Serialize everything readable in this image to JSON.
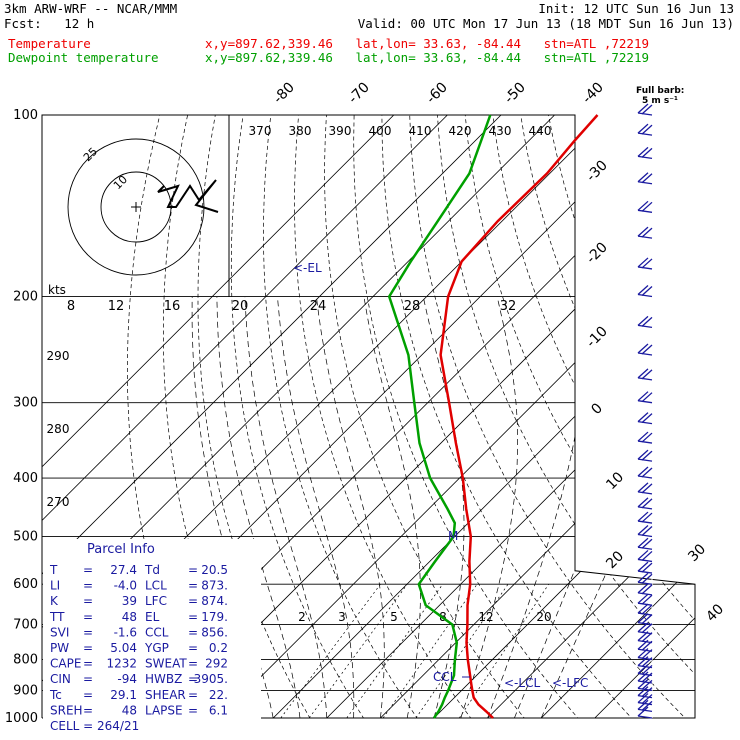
{
  "header": {
    "title": "3km ARW-WRF -- NCAR/MMM",
    "forecast": "Fcst:   12 h",
    "init": "Init: 12 UTC Sun 16 Jun 13",
    "valid": "Valid: 00 UTC Mon 17 Jun 13 (18 MDT Sun 16 Jun 13)"
  },
  "legend": {
    "temperature": {
      "name": "Temperature",
      "info": "x,y=897.62,339.46   lat,lon= 33.63, -84.44   stn=ATL ,72219",
      "color": "#e00000"
    },
    "dewpoint": {
      "name": "Dewpoint temperature",
      "info": "x,y=897.62,339.46   lat,lon= 33.63, -84.44   stn=ATL ,72219",
      "color": "#00a000"
    }
  },
  "barb_key": {
    "line1": "Full barb:",
    "line2": "5 m s⁻¹"
  },
  "hodograph": {
    "units": "kts",
    "ring_labels": [
      "10",
      "25"
    ],
    "speed_labels": [
      "8",
      "12",
      "16",
      "20",
      "24",
      "28",
      "32"
    ]
  },
  "parcel_info": {
    "title": "Parcel Info",
    "rows": [
      [
        "T",
        "27.4",
        "Td",
        "20.5"
      ],
      [
        "LI",
        "-4.0",
        "LCL",
        "873."
      ],
      [
        "K",
        "39",
        "LFC",
        "874."
      ],
      [
        "TT",
        "48",
        "EL",
        "179."
      ],
      [
        "SVI",
        "-1.6",
        "CCL",
        "856."
      ],
      [
        "PW",
        "5.04",
        "YGP",
        "0.2"
      ],
      [
        "CAPE",
        "1232",
        "SWEAT",
        "292"
      ],
      [
        "CIN",
        "-94",
        "HWBZ",
        "3905."
      ],
      [
        "Tc",
        "29.1",
        "SHEAR",
        "22."
      ],
      [
        "SREH",
        "48",
        "LAPSE",
        "6.1"
      ]
    ],
    "cell": "CELL = 264/21"
  },
  "chart_data": {
    "type": "line",
    "title": "",
    "xlabel": "",
    "ylabel": "",
    "y_scale": "log-pressure (hPa)",
    "pressure_levels": [
      100,
      200,
      300,
      400,
      500,
      600,
      700,
      800,
      900,
      1000
    ],
    "pressure_labels": [
      "100",
      "200",
      "300",
      "400",
      "500",
      "600",
      "700",
      "800",
      "900",
      "1000"
    ],
    "isotherm_labels": [
      "-80",
      "-70",
      "-60",
      "-50",
      "-40",
      "-30",
      "-20",
      "-10",
      "0",
      "10",
      "20",
      "30",
      "40"
    ],
    "theta_labels": [
      "370",
      "380",
      "390",
      "400",
      "410",
      "420",
      "430",
      "440"
    ],
    "dry_adiabat_labels": [
      "290",
      "280",
      "270"
    ],
    "mixing_ratio_labels": [
      "2",
      "3",
      "5",
      "8",
      "12",
      "20"
    ],
    "level_markers": {
      "el": "<-EL",
      "lcl": "<-LCL",
      "lfc": "<-LFC",
      "ccl": "CCL",
      "m": "M"
    },
    "series": [
      {
        "name": "Temperature",
        "color": "#e00000",
        "points": [
          [
            1000,
            31.0
          ],
          [
            975,
            28.5
          ],
          [
            950,
            25.8
          ],
          [
            925,
            23.6
          ],
          [
            900,
            22.0
          ],
          [
            875,
            20.4
          ],
          [
            850,
            18.8
          ],
          [
            800,
            15.4
          ],
          [
            750,
            12.0
          ],
          [
            700,
            8.8
          ],
          [
            650,
            5.2
          ],
          [
            600,
            1.8
          ],
          [
            550,
            -2.6
          ],
          [
            500,
            -7.0
          ],
          [
            450,
            -13.0
          ],
          [
            400,
            -19.4
          ],
          [
            350,
            -27.2
          ],
          [
            300,
            -36.0
          ],
          [
            250,
            -46.5
          ],
          [
            200,
            -56.0
          ],
          [
            175,
            -60.0
          ],
          [
            150,
            -60.8
          ],
          [
            125,
            -60.5
          ],
          [
            110,
            -61.5
          ],
          [
            100,
            -62.0
          ]
        ]
      },
      {
        "name": "Dewpoint temperature",
        "color": "#00a000",
        "points": [
          [
            1000,
            20.0
          ],
          [
            975,
            19.6
          ],
          [
            950,
            19.0
          ],
          [
            925,
            18.2
          ],
          [
            900,
            17.5
          ],
          [
            850,
            15.8
          ],
          [
            800,
            13.0
          ],
          [
            750,
            10.2
          ],
          [
            700,
            6.0
          ],
          [
            650,
            -2.6
          ],
          [
            600,
            -7.8
          ],
          [
            550,
            -9.0
          ],
          [
            500,
            -10.2
          ],
          [
            475,
            -12.5
          ],
          [
            450,
            -16.5
          ],
          [
            400,
            -25.5
          ],
          [
            350,
            -34.0
          ],
          [
            300,
            -42.5
          ],
          [
            250,
            -52.5
          ],
          [
            200,
            -67.0
          ],
          [
            175,
            -69.5
          ],
          [
            150,
            -72.0
          ],
          [
            125,
            -75.0
          ],
          [
            110,
            -79.0
          ],
          [
            100,
            -82.0
          ]
        ]
      }
    ],
    "wind_barbs": [
      {
        "p": 1000,
        "dir": 200,
        "spd": 5
      },
      {
        "p": 975,
        "dir": 210,
        "spd": 10
      },
      {
        "p": 950,
        "dir": 225,
        "spd": 10
      },
      {
        "p": 925,
        "dir": 240,
        "spd": 10
      },
      {
        "p": 900,
        "dir": 250,
        "spd": 10
      },
      {
        "p": 875,
        "dir": 255,
        "spd": 10
      },
      {
        "p": 850,
        "dir": 260,
        "spd": 10
      },
      {
        "p": 825,
        "dir": 265,
        "spd": 10
      },
      {
        "p": 800,
        "dir": 265,
        "spd": 10
      },
      {
        "p": 775,
        "dir": 270,
        "spd": 10
      },
      {
        "p": 750,
        "dir": 270,
        "spd": 10
      },
      {
        "p": 725,
        "dir": 270,
        "spd": 10
      },
      {
        "p": 700,
        "dir": 270,
        "spd": 10
      },
      {
        "p": 675,
        "dir": 270,
        "spd": 10
      },
      {
        "p": 650,
        "dir": 270,
        "spd": 10
      },
      {
        "p": 625,
        "dir": 270,
        "spd": 10
      },
      {
        "p": 600,
        "dir": 275,
        "spd": 10
      },
      {
        "p": 575,
        "dir": 275,
        "spd": 10
      },
      {
        "p": 550,
        "dir": 275,
        "spd": 10
      },
      {
        "p": 525,
        "dir": 275,
        "spd": 10
      },
      {
        "p": 500,
        "dir": 275,
        "spd": 10
      },
      {
        "p": 475,
        "dir": 275,
        "spd": 10
      },
      {
        "p": 450,
        "dir": 275,
        "spd": 10
      },
      {
        "p": 425,
        "dir": 275,
        "spd": 10
      },
      {
        "p": 400,
        "dir": 275,
        "spd": 10
      },
      {
        "p": 375,
        "dir": 275,
        "spd": 10
      },
      {
        "p": 350,
        "dir": 275,
        "spd": 10
      },
      {
        "p": 325,
        "dir": 275,
        "spd": 10
      },
      {
        "p": 300,
        "dir": 275,
        "spd": 10
      },
      {
        "p": 275,
        "dir": 275,
        "spd": 10
      },
      {
        "p": 250,
        "dir": 275,
        "spd": 10
      },
      {
        "p": 225,
        "dir": 275,
        "spd": 10
      },
      {
        "p": 200,
        "dir": 275,
        "spd": 10
      },
      {
        "p": 180,
        "dir": 275,
        "spd": 10
      },
      {
        "p": 160,
        "dir": 275,
        "spd": 10
      },
      {
        "p": 145,
        "dir": 275,
        "spd": 10
      },
      {
        "p": 130,
        "dir": 275,
        "spd": 10
      },
      {
        "p": 118,
        "dir": 275,
        "spd": 10
      },
      {
        "p": 108,
        "dir": 270,
        "spd": 10
      },
      {
        "p": 100,
        "dir": 270,
        "spd": 10
      }
    ]
  }
}
